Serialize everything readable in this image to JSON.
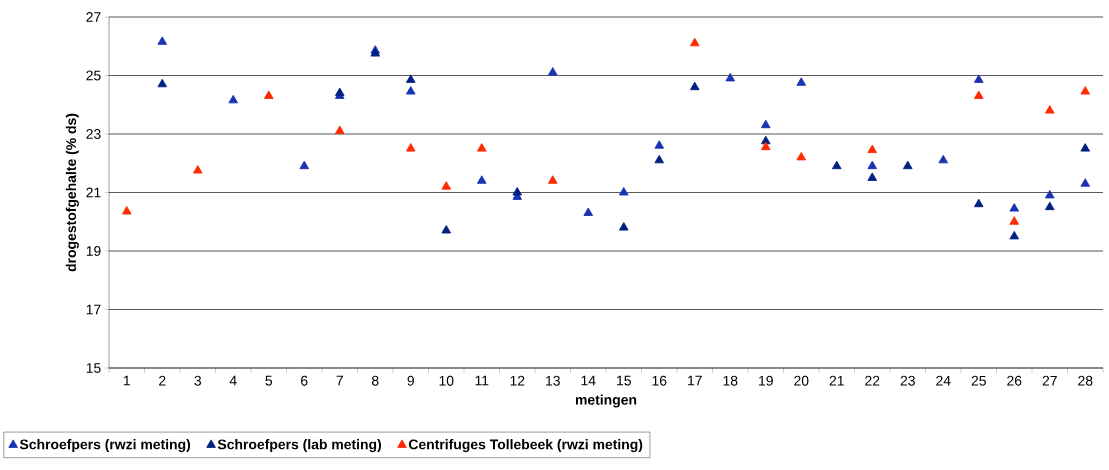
{
  "chart_data": {
    "type": "scatter",
    "xlabel": "metingen",
    "ylabel": "drogestofgehalte (% ds)",
    "categories": [
      "1",
      "2",
      "3",
      "4",
      "5",
      "6",
      "7",
      "8",
      "9",
      "10",
      "11",
      "12",
      "13",
      "14",
      "15",
      "16",
      "17",
      "18",
      "19",
      "20",
      "21",
      "22",
      "23",
      "24",
      "25",
      "26",
      "27",
      "28"
    ],
    "series": [
      {
        "name": "Schroefpers (rwzi meting)",
        "color": "#1a33b3",
        "values": [
          null,
          26.15,
          null,
          24.15,
          null,
          21.9,
          24.3,
          25.85,
          24.45,
          null,
          21.4,
          20.85,
          25.1,
          20.3,
          21.0,
          22.6,
          null,
          24.9,
          23.3,
          24.75,
          null,
          21.9,
          null,
          22.1,
          24.85,
          20.45,
          20.9,
          21.3
        ]
      },
      {
        "name": "Schroefpers (lab meting)",
        "color": "#00207f",
        "values": [
          null,
          24.7,
          null,
          null,
          null,
          null,
          24.4,
          25.75,
          24.85,
          19.7,
          null,
          21.0,
          null,
          null,
          19.8,
          22.1,
          24.6,
          null,
          22.75,
          null,
          21.9,
          21.5,
          21.9,
          null,
          20.6,
          19.5,
          20.5,
          22.5
        ]
      },
      {
        "name": "Centrifuges Tollebeek (rwzi meting)",
        "color": "#ff2a00",
        "values": [
          20.35,
          null,
          21.75,
          null,
          24.3,
          null,
          23.1,
          null,
          22.5,
          21.2,
          22.5,
          null,
          21.4,
          null,
          null,
          null,
          26.1,
          null,
          22.55,
          22.2,
          null,
          22.45,
          null,
          null,
          24.3,
          20.0,
          23.8,
          24.45
        ]
      }
    ],
    "ylim": [
      15,
      27
    ],
    "yticks": [
      15,
      17,
      19,
      21,
      23,
      25,
      27
    ],
    "grid": "y",
    "legend": "bottom",
    "marker": "triangle"
  }
}
